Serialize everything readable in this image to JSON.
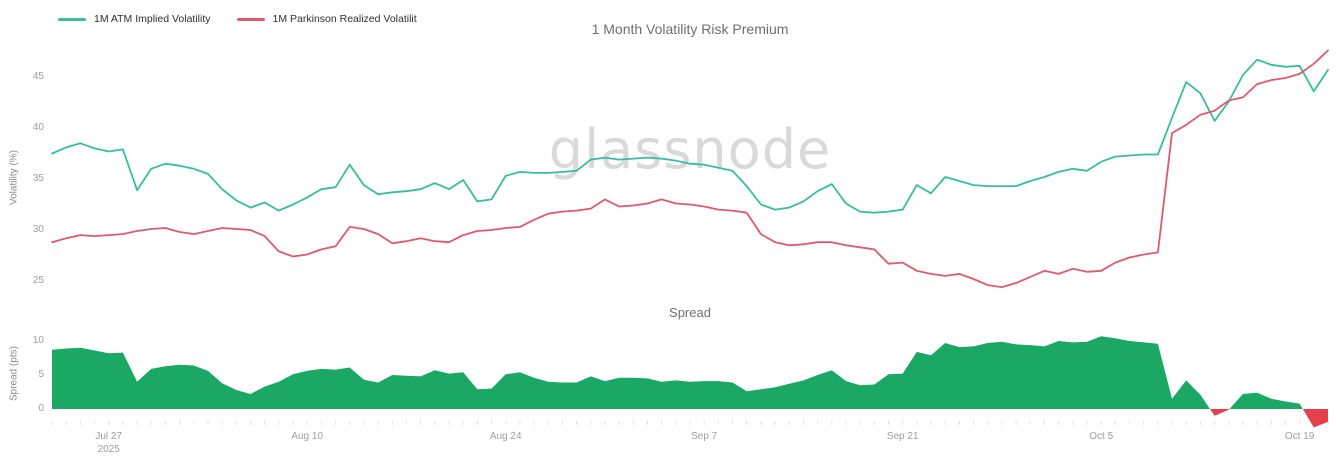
{
  "title": "1 Month Volatility Risk Premium",
  "watermark": "glassnode",
  "spread_title": "Spread",
  "legend": [
    {
      "label": "1M ATM Implied Volatility",
      "color": "#35bf9d"
    },
    {
      "label": "1M Parkinson Realized Volatilit",
      "color": "#e0596c"
    }
  ],
  "vol_axis": {
    "label": "Volatility (%)",
    "ticks": [
      45,
      40,
      35,
      30,
      25
    ]
  },
  "spread_axis": {
    "label": "Spread (pts)",
    "ticks": [
      10,
      5,
      0
    ]
  },
  "x_axis": {
    "ticks": [
      {
        "label": "Jul 27",
        "sublabel": "2025",
        "index": 4
      },
      {
        "label": "Aug 10",
        "index": 18
      },
      {
        "label": "Aug 24",
        "index": 32
      },
      {
        "label": "Sep 7",
        "index": 46
      },
      {
        "label": "Sep 21",
        "index": 60
      },
      {
        "label": "Oct 5",
        "index": 74
      },
      {
        "label": "Oct 19",
        "index": 88
      }
    ]
  },
  "chart_data": [
    {
      "type": "line",
      "title": "1 Month Volatility Risk Premium",
      "ylabel": "Volatility (%)",
      "ylim": [
        23,
        48
      ],
      "grid": false,
      "legend_position": "top-left",
      "x_unit": "day",
      "x_range": [
        "Jul 23 2025",
        "Oct 21 2025"
      ],
      "x_tick_labels": [
        "Jul 27 2025",
        "Aug 10",
        "Aug 24",
        "Sep 7",
        "Sep 21",
        "Oct 5",
        "Oct 19"
      ],
      "series": [
        {
          "name": "1M ATM Implied Volatility",
          "color": "#35bf9d",
          "values": [
            37.5,
            38.1,
            38.5,
            38.0,
            37.7,
            37.9,
            33.9,
            36.0,
            36.5,
            36.3,
            36.0,
            35.5,
            34.0,
            32.9,
            32.2,
            32.7,
            31.9,
            32.5,
            33.2,
            34.0,
            34.2,
            36.4,
            34.4,
            33.5,
            33.7,
            33.8,
            34.0,
            34.6,
            34.0,
            34.9,
            32.8,
            33.0,
            35.3,
            35.7,
            35.6,
            35.6,
            35.7,
            35.8,
            36.9,
            37.1,
            36.9,
            37.0,
            37.1,
            37.0,
            36.8,
            36.5,
            36.4,
            36.1,
            35.8,
            34.3,
            32.5,
            32.0,
            32.2,
            32.8,
            33.8,
            34.5,
            32.6,
            31.8,
            31.7,
            31.8,
            32.0,
            34.4,
            33.6,
            35.2,
            34.8,
            34.4,
            34.3,
            34.3,
            34.3,
            34.8,
            35.2,
            35.7,
            36.0,
            35.8,
            36.7,
            37.2,
            37.3,
            37.4,
            37.4,
            41.0,
            44.5,
            43.4,
            40.7,
            42.6,
            45.2,
            46.7,
            46.2,
            46.0,
            46.1,
            43.6,
            45.7
          ]
        },
        {
          "name": "1M Parkinson Realized Volatilit",
          "color": "#e0596c",
          "values": [
            28.8,
            29.2,
            29.5,
            29.4,
            29.5,
            29.6,
            29.9,
            30.1,
            30.2,
            29.8,
            29.6,
            29.9,
            30.2,
            30.1,
            30.0,
            29.4,
            27.9,
            27.4,
            27.6,
            28.1,
            28.4,
            30.3,
            30.1,
            29.6,
            28.7,
            28.9,
            29.2,
            28.9,
            28.8,
            29.5,
            29.9,
            30.0,
            30.2,
            30.3,
            31.0,
            31.6,
            31.8,
            31.9,
            32.1,
            33.0,
            32.3,
            32.4,
            32.6,
            33.0,
            32.6,
            32.5,
            32.3,
            32.0,
            31.9,
            31.7,
            29.6,
            28.8,
            28.5,
            28.6,
            28.8,
            28.8,
            28.5,
            28.3,
            28.1,
            26.7,
            26.8,
            26.0,
            25.7,
            25.5,
            25.7,
            25.2,
            24.6,
            24.4,
            24.8,
            25.4,
            26.0,
            25.7,
            26.2,
            25.9,
            26.0,
            26.8,
            27.3,
            27.6,
            27.8,
            39.5,
            40.3,
            41.3,
            41.7,
            42.7,
            43.0,
            44.3,
            44.7,
            44.9,
            45.3,
            46.3,
            47.6
          ]
        }
      ]
    },
    {
      "type": "area",
      "title": "Spread",
      "ylabel": "Spread (pts)",
      "ylim": [
        -3,
        12
      ],
      "grid": false,
      "positive_color": "#1aa864",
      "negative_color": "#e5404b",
      "values": [
        8.7,
        8.9,
        9.0,
        8.6,
        8.2,
        8.3,
        4.0,
        5.9,
        6.3,
        6.5,
        6.4,
        5.6,
        3.8,
        2.8,
        2.2,
        3.3,
        4.0,
        5.1,
        5.6,
        5.9,
        5.8,
        6.1,
        4.3,
        3.9,
        5.0,
        4.9,
        4.8,
        5.7,
        5.2,
        5.4,
        2.9,
        3.0,
        5.1,
        5.4,
        4.6,
        4.0,
        3.9,
        3.9,
        4.8,
        4.1,
        4.6,
        4.6,
        4.5,
        4.0,
        4.2,
        4.0,
        4.1,
        4.1,
        3.9,
        2.6,
        2.9,
        3.2,
        3.7,
        4.2,
        5.0,
        5.7,
        4.1,
        3.5,
        3.6,
        5.1,
        5.2,
        8.4,
        7.9,
        9.7,
        9.1,
        9.2,
        9.7,
        9.9,
        9.5,
        9.4,
        9.2,
        10.0,
        9.8,
        9.9,
        10.7,
        10.4,
        10.0,
        9.8,
        9.6,
        1.5,
        4.2,
        2.1,
        -1.0,
        -0.1,
        2.2,
        2.4,
        1.5,
        1.1,
        0.8,
        -2.7,
        -1.9
      ]
    }
  ]
}
